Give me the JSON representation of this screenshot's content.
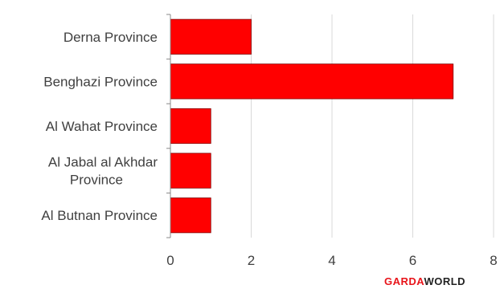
{
  "chart_data": {
    "type": "bar",
    "orientation": "horizontal",
    "categories": [
      "Derna Province",
      "Benghazi Province",
      "Al Wahat Province",
      "Al Jabal al Akhdar Province",
      "Al Butnan Province"
    ],
    "values": [
      2,
      7,
      1,
      1,
      1
    ],
    "xlim": [
      0,
      8
    ],
    "xticks": [
      "0",
      "2",
      "4",
      "6",
      "8"
    ],
    "bar_color": "#ff0000",
    "grid": "vertical",
    "title": "",
    "xlabel": "",
    "ylabel": ""
  },
  "logo": {
    "part1": "GARDA",
    "part2": "WORLD"
  }
}
